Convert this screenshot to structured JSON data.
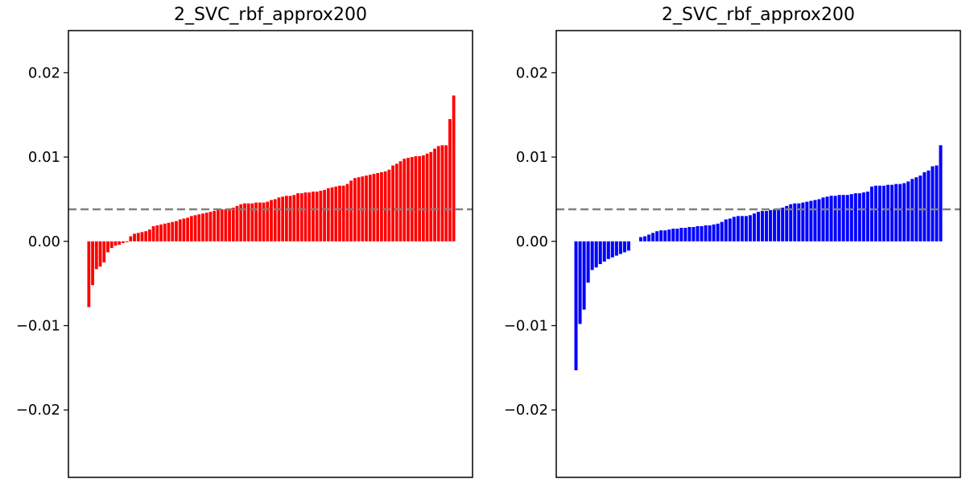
{
  "chart_data": [
    {
      "type": "bar",
      "title": "2_SVC_rbf_approx200",
      "xlabel": "",
      "ylabel": "",
      "ylim": [
        -0.028,
        0.025
      ],
      "yticks": [
        -0.02,
        -0.01,
        0.0,
        0.01,
        0.02
      ],
      "ytick_labels": [
        "−0.02",
        "−0.01",
        "0.00",
        "0.01",
        "0.02"
      ],
      "xticks_visible": false,
      "grid": false,
      "bar_color": "#ff0000",
      "reference_line": {
        "y": 0.0038,
        "style": "dashed",
        "color": "#808080"
      },
      "values": [
        -0.0078,
        -0.0052,
        -0.0033,
        -0.003,
        -0.0025,
        -0.0013,
        -0.0008,
        -0.0005,
        -0.0004,
        -0.0002,
        -0.0001,
        0.0006,
        0.0009,
        0.001,
        0.0011,
        0.0012,
        0.0014,
        0.0018,
        0.0019,
        0.002,
        0.0021,
        0.0022,
        0.0023,
        0.0024,
        0.0026,
        0.0027,
        0.0028,
        0.003,
        0.0031,
        0.0032,
        0.0033,
        0.0034,
        0.0035,
        0.0036,
        0.0037,
        0.0038,
        0.0038,
        0.0039,
        0.004,
        0.0042,
        0.0044,
        0.0045,
        0.0045,
        0.0045,
        0.0046,
        0.0046,
        0.0046,
        0.0047,
        0.0049,
        0.005,
        0.0052,
        0.0053,
        0.0054,
        0.0054,
        0.0055,
        0.0057,
        0.0057,
        0.0058,
        0.0058,
        0.0059,
        0.0059,
        0.006,
        0.0061,
        0.0063,
        0.0064,
        0.0065,
        0.0066,
        0.0066,
        0.0068,
        0.0072,
        0.0075,
        0.0076,
        0.0077,
        0.0078,
        0.0079,
        0.008,
        0.0081,
        0.0082,
        0.0083,
        0.0085,
        0.009,
        0.0092,
        0.0095,
        0.0098,
        0.0099,
        0.01,
        0.0101,
        0.0101,
        0.0102,
        0.0104,
        0.0106,
        0.011,
        0.0113,
        0.0114,
        0.0114,
        0.0145,
        0.0173
      ]
    },
    {
      "type": "bar",
      "title": "2_SVC_rbf_approx200",
      "xlabel": "",
      "ylabel": "",
      "ylim": [
        -0.028,
        0.025
      ],
      "yticks": [
        -0.02,
        -0.01,
        0.0,
        0.01,
        0.02
      ],
      "ytick_labels": [
        "−0.02",
        "−0.01",
        "0.00",
        "0.01",
        "0.02"
      ],
      "xticks_visible": false,
      "grid": false,
      "bar_color": "#0000ff",
      "reference_line": {
        "y": 0.0038,
        "style": "dashed",
        "color": "#808080"
      },
      "values": [
        -0.0153,
        -0.0098,
        -0.0081,
        -0.0049,
        -0.0034,
        -0.0031,
        -0.0027,
        -0.0024,
        -0.0021,
        -0.0019,
        -0.0017,
        -0.0015,
        -0.0013,
        -0.0011,
        0.0,
        0.0,
        0.0005,
        0.0006,
        0.0008,
        0.001,
        0.0012,
        0.0013,
        0.0013,
        0.0014,
        0.0015,
        0.0015,
        0.0016,
        0.0016,
        0.0017,
        0.0017,
        0.0018,
        0.0018,
        0.0019,
        0.0019,
        0.002,
        0.0021,
        0.0023,
        0.0026,
        0.0027,
        0.0029,
        0.003,
        0.003,
        0.003,
        0.0031,
        0.0033,
        0.0035,
        0.0036,
        0.0036,
        0.0037,
        0.0038,
        0.0039,
        0.004,
        0.0042,
        0.0044,
        0.0045,
        0.0045,
        0.0046,
        0.0047,
        0.0048,
        0.0049,
        0.005,
        0.0052,
        0.0053,
        0.0054,
        0.0054,
        0.0055,
        0.0055,
        0.0055,
        0.0056,
        0.0057,
        0.0057,
        0.0058,
        0.0059,
        0.0065,
        0.0066,
        0.0066,
        0.0066,
        0.0067,
        0.0067,
        0.0068,
        0.0068,
        0.0069,
        0.0071,
        0.0074,
        0.0076,
        0.0078,
        0.0082,
        0.0084,
        0.0089,
        0.009,
        0.0114
      ]
    }
  ]
}
